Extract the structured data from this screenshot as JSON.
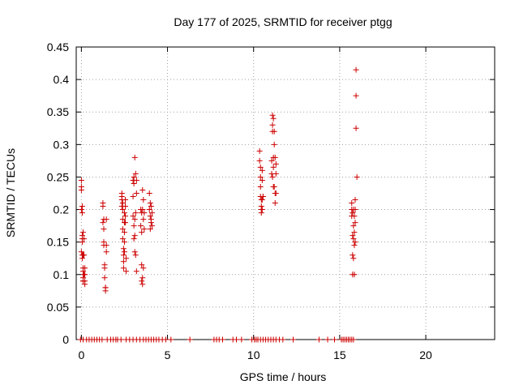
{
  "chart_data": {
    "type": "scatter",
    "title": "Day 177 of 2025, SRMTID for receiver ptgg",
    "xlabel": "GPS time / hours",
    "ylabel": "SRMTID / TECUs",
    "xlim": [
      -0.3,
      24
    ],
    "ylim": [
      0,
      0.45
    ],
    "x_ticks": [
      0,
      5,
      10,
      15,
      20
    ],
    "y_ticks": [
      0,
      0.05,
      0.1,
      0.15,
      0.2,
      0.25,
      0.3,
      0.35,
      0.4,
      0.45
    ],
    "x_tick_labels": [
      "0",
      "5",
      "10",
      "15",
      "20"
    ],
    "y_tick_labels": [
      "0",
      "0.05",
      "0.1",
      "0.15",
      "0.2",
      "0.25",
      "0.3",
      "0.35",
      "0.4",
      "0.45"
    ],
    "grid": true,
    "marker": "+",
    "marker_color": "#cc0000",
    "series": [
      {
        "name": "SRMTID",
        "x": [
          0.0,
          0.0,
          0.0,
          0.0,
          0.0,
          0.05,
          0.05,
          0.05,
          0.05,
          0.05,
          0.05,
          0.05,
          0.1,
          0.1,
          0.1,
          0.1,
          0.1,
          0.1,
          0.1,
          0.15,
          0.15,
          0.15,
          0.2,
          0.2,
          0.2,
          0.2,
          1.25,
          1.25,
          1.25,
          1.3,
          1.3,
          1.3,
          1.3,
          1.35,
          1.35,
          1.35,
          1.4,
          1.4,
          1.4,
          1.45,
          1.45,
          1.45,
          2.35,
          2.35,
          2.35,
          2.35,
          2.4,
          2.4,
          2.4,
          2.4,
          2.4,
          2.45,
          2.45,
          2.45,
          2.45,
          2.5,
          2.5,
          2.5,
          2.5,
          2.5,
          2.55,
          2.55,
          2.55,
          2.55,
          2.6,
          2.6,
          3.0,
          3.0,
          3.0,
          3.05,
          3.05,
          3.05,
          3.05,
          3.1,
          3.1,
          3.1,
          3.1,
          3.15,
          3.15,
          3.15,
          3.2,
          3.2,
          3.2,
          3.45,
          3.45,
          3.5,
          3.5,
          3.5,
          3.5,
          3.55,
          3.55,
          3.55,
          3.55,
          3.6,
          3.6,
          3.6,
          3.65,
          3.65,
          3.95,
          3.95,
          4.0,
          4.0,
          4.0,
          4.05,
          4.05,
          4.05,
          4.1,
          4.1,
          10.35,
          10.35,
          10.4,
          10.4,
          10.4,
          10.4,
          10.45,
          10.45,
          10.45,
          10.45,
          10.5,
          10.5,
          10.5,
          10.5,
          10.55,
          10.55,
          11.05,
          11.05,
          11.1,
          11.1,
          11.1,
          11.1,
          11.15,
          11.15,
          11.15,
          11.15,
          11.2,
          11.2,
          11.2,
          11.25,
          11.25,
          11.25,
          11.3,
          11.3,
          11.3,
          15.7,
          15.7,
          15.7,
          15.75,
          15.75,
          15.75,
          15.75,
          15.8,
          15.8,
          15.8,
          15.8,
          15.85,
          15.85,
          15.85,
          15.85,
          15.9,
          15.9,
          15.9,
          15.9,
          15.95,
          15.95,
          15.95,
          16.0,
          -0.05,
          0.1,
          0.3,
          0.45,
          0.6,
          0.75,
          0.9,
          1.05,
          1.2,
          1.5,
          1.7,
          1.85,
          2.0,
          2.1,
          2.3,
          2.6,
          2.8,
          3.0,
          3.2,
          3.4,
          3.6,
          3.75,
          3.9,
          4.05,
          4.2,
          4.35,
          4.5,
          4.7,
          4.9,
          5.2,
          6.3,
          7.7,
          7.85,
          8.0,
          8.2,
          8.8,
          9.0,
          9.3,
          9.9,
          10.05,
          10.15,
          10.25,
          10.4,
          10.55,
          10.7,
          10.85,
          11.0,
          11.15,
          11.3,
          11.5,
          11.7,
          12.3,
          13.8,
          14.3,
          14.7,
          15.1,
          15.2,
          15.3,
          15.4,
          15.5,
          15.6,
          15.7,
          15.8
        ],
        "y": [
          0.245,
          0.235,
          0.23,
          0.2,
          0.135,
          0.16,
          0.15,
          0.13,
          0.125,
          0.195,
          0.205,
          0.155,
          0.165,
          0.13,
          0.11,
          0.105,
          0.095,
          0.09,
          0.09,
          0.155,
          0.13,
          0.1,
          0.11,
          0.1,
          0.09,
          0.085,
          0.21,
          0.205,
          0.18,
          0.185,
          0.17,
          0.15,
          0.145,
          0.115,
          0.11,
          0.095,
          0.08,
          0.08,
          0.075,
          0.185,
          0.145,
          0.135,
          0.225,
          0.22,
          0.215,
          0.205,
          0.21,
          0.2,
          0.185,
          0.17,
          0.155,
          0.14,
          0.13,
          0.12,
          0.11,
          0.195,
          0.18,
          0.165,
          0.15,
          0.135,
          0.215,
          0.205,
          0.19,
          0.18,
          0.125,
          0.105,
          0.245,
          0.22,
          0.19,
          0.25,
          0.24,
          0.175,
          0.155,
          0.28,
          0.185,
          0.16,
          0.135,
          0.255,
          0.195,
          0.13,
          0.245,
          0.225,
          0.105,
          0.2,
          0.175,
          0.195,
          0.165,
          0.115,
          0.09,
          0.23,
          0.2,
          0.085,
          0.095,
          0.215,
          0.185,
          0.11,
          0.17,
          0.195,
          0.225,
          0.2,
          0.21,
          0.19,
          0.17,
          0.205,
          0.185,
          0.18,
          0.195,
          0.175,
          0.29,
          0.275,
          0.265,
          0.25,
          0.235,
          0.22,
          0.215,
          0.205,
          0.195,
          0.2,
          0.26,
          0.245,
          0.215,
          0.2,
          0.22,
          0.22,
          0.275,
          0.255,
          0.345,
          0.33,
          0.32,
          0.25,
          0.34,
          0.28,
          0.265,
          0.235,
          0.32,
          0.3,
          0.235,
          0.28,
          0.225,
          0.21,
          0.27,
          0.255,
          0.225,
          0.21,
          0.2,
          0.19,
          0.195,
          0.16,
          0.13,
          0.1,
          0.2,
          0.175,
          0.155,
          0.125,
          0.19,
          0.165,
          0.145,
          0.1,
          0.215,
          0.2,
          0.18,
          0.15,
          0.415,
          0.375,
          0.325,
          0.25,
          0,
          0,
          0,
          0,
          0,
          0,
          0,
          0,
          0,
          0,
          0,
          0,
          0,
          0,
          0,
          0,
          0,
          0,
          0,
          0,
          0,
          0,
          0,
          0,
          0,
          0,
          0,
          0,
          0,
          0,
          0,
          0,
          0,
          0,
          0,
          0,
          0,
          0,
          0,
          0,
          0,
          0,
          0,
          0,
          0,
          0,
          0,
          0,
          0,
          0,
          0,
          0,
          0,
          0,
          0,
          0,
          0,
          0,
          0,
          0,
          0,
          0,
          0
        ]
      }
    ]
  }
}
